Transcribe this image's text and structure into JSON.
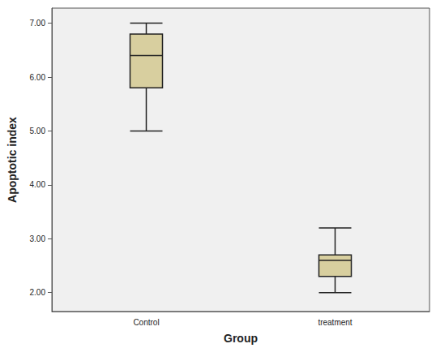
{
  "chart_data": {
    "type": "boxplot",
    "x_label": "Group",
    "y_label": "Apoptotic index",
    "categories": [
      "Control",
      "treatment"
    ],
    "values": [
      [
        5.0,
        5.8,
        6.4,
        6.8,
        7.0
      ],
      [
        2.0,
        2.3,
        2.6,
        2.7,
        3.2
      ]
    ],
    "color": "#d8cf9f",
    "ylim": [
      1.65,
      7.28
    ],
    "yticks": [
      {
        "value": 2,
        "label": "2.00"
      },
      {
        "value": 3,
        "label": "3.00"
      },
      {
        "value": 4,
        "label": "4.00"
      },
      {
        "value": 5,
        "label": "5.00"
      },
      {
        "value": 6,
        "label": "6.00"
      },
      {
        "value": 7,
        "label": "7.00"
      }
    ],
    "grid": false
  }
}
